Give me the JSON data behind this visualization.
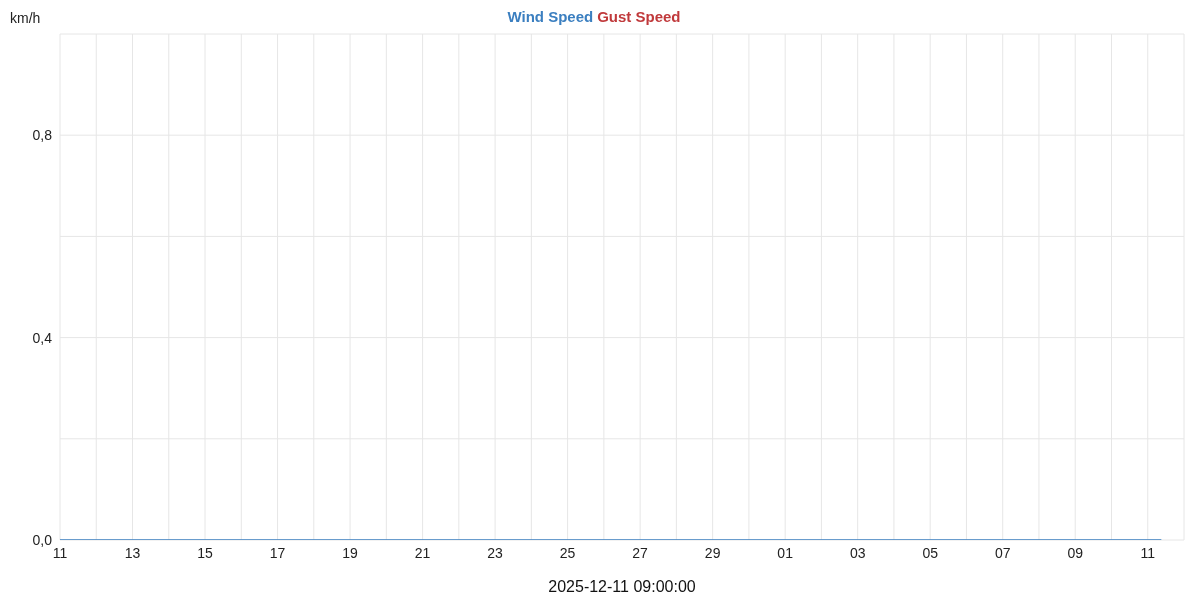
{
  "chart_data": {
    "type": "line",
    "xlabel": "2025-12-11 09:00:00",
    "ylabel": "km/h",
    "x": [
      "2025-11-11",
      "2025-11-13",
      "2025-11-15",
      "2025-11-17",
      "2025-11-19",
      "2025-11-21",
      "2025-11-23",
      "2025-11-25",
      "2025-11-27",
      "2025-11-29",
      "2025-12-01",
      "2025-12-03",
      "2025-12-05",
      "2025-12-07",
      "2025-12-09",
      "2025-12-11",
      "2025-12-11T09:00"
    ],
    "series": [
      {
        "name": "Wind Speed",
        "color": "#3b7fc0",
        "values": [
          0,
          0,
          0,
          0,
          0,
          0,
          0,
          0,
          0,
          0,
          0,
          0,
          0,
          0,
          0,
          0,
          0
        ]
      },
      {
        "name": "Gust Speed",
        "color": "#c0393b",
        "values": [
          null,
          null,
          null,
          null,
          null,
          null,
          null,
          null,
          null,
          null,
          null,
          null,
          null,
          null,
          null,
          null,
          null
        ]
      }
    ],
    "xlim": [
      "2025-11-11",
      "2025-12-12"
    ],
    "xticks": [
      {
        "value": "2025-11-11",
        "label": "11"
      },
      {
        "value": "2025-11-12",
        "label": null
      },
      {
        "value": "2025-11-13",
        "label": "13"
      },
      {
        "value": "2025-11-14",
        "label": null
      },
      {
        "value": "2025-11-15",
        "label": "15"
      },
      {
        "value": "2025-11-16",
        "label": null
      },
      {
        "value": "2025-11-17",
        "label": "17"
      },
      {
        "value": "2025-11-18",
        "label": null
      },
      {
        "value": "2025-11-19",
        "label": "19"
      },
      {
        "value": "2025-11-20",
        "label": null
      },
      {
        "value": "2025-11-21",
        "label": "21"
      },
      {
        "value": "2025-11-22",
        "label": null
      },
      {
        "value": "2025-11-23",
        "label": "23"
      },
      {
        "value": "2025-11-24",
        "label": null
      },
      {
        "value": "2025-11-25",
        "label": "25"
      },
      {
        "value": "2025-11-26",
        "label": null
      },
      {
        "value": "2025-11-27",
        "label": "27"
      },
      {
        "value": "2025-11-28",
        "label": null
      },
      {
        "value": "2025-11-29",
        "label": "29"
      },
      {
        "value": "2025-11-30",
        "label": null
      },
      {
        "value": "2025-12-01",
        "label": "01"
      },
      {
        "value": "2025-12-02",
        "label": null
      },
      {
        "value": "2025-12-03",
        "label": "03"
      },
      {
        "value": "2025-12-04",
        "label": null
      },
      {
        "value": "2025-12-05",
        "label": "05"
      },
      {
        "value": "2025-12-06",
        "label": null
      },
      {
        "value": "2025-12-07",
        "label": "07"
      },
      {
        "value": "2025-12-08",
        "label": null
      },
      {
        "value": "2025-12-09",
        "label": "09"
      },
      {
        "value": "2025-12-10",
        "label": null
      },
      {
        "value": "2025-12-11",
        "label": "11"
      }
    ],
    "ylim": [
      0,
      1
    ],
    "yticks": [
      {
        "value": 0,
        "label": "0,0"
      },
      {
        "value": 0.2,
        "label": null
      },
      {
        "value": 0.4,
        "label": "0,4"
      },
      {
        "value": 0.6,
        "label": null
      },
      {
        "value": 0.8,
        "label": "0,8"
      }
    ],
    "grid": true,
    "legend": "top",
    "marker": "none",
    "line_style": "solid"
  }
}
